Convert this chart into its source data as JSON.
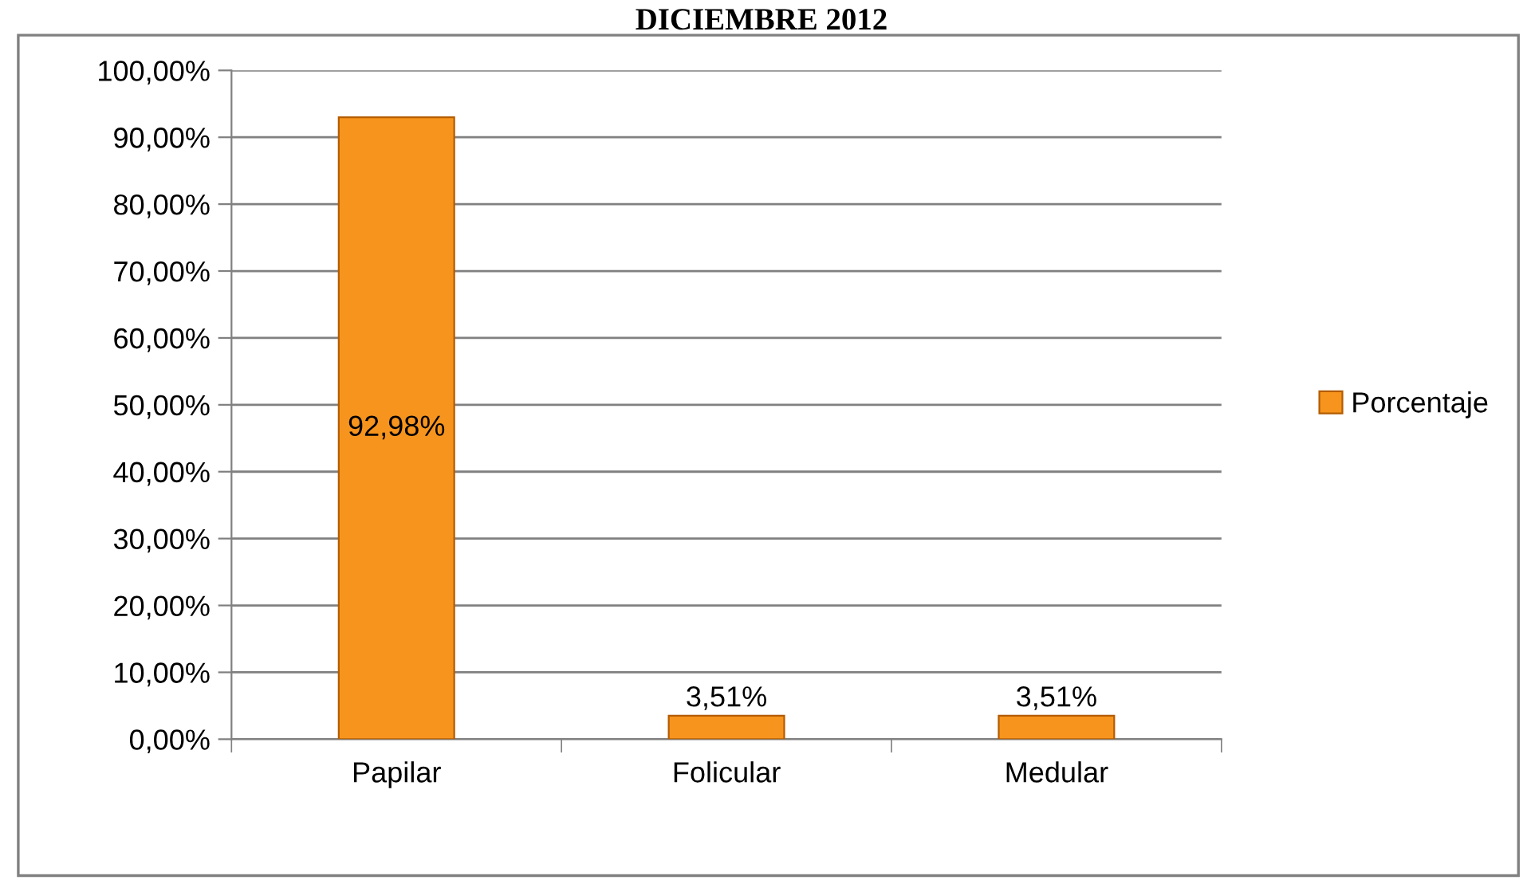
{
  "chart_data": {
    "type": "bar",
    "title": "DICIEMBRE 2012",
    "categories": [
      "Papilar",
      "Folicular",
      "Medular"
    ],
    "series": [
      {
        "name": "Porcentaje",
        "color": "#f7941d",
        "values": [
          92.98,
          3.51,
          3.51
        ],
        "value_labels": [
          "92,98%",
          "3,51%",
          "3,51%"
        ]
      }
    ],
    "ylim": [
      0,
      100
    ],
    "yticks": [
      {
        "value": 0,
        "label": "0,00%"
      },
      {
        "value": 10,
        "label": "10,00%"
      },
      {
        "value": 20,
        "label": "20,00%"
      },
      {
        "value": 30,
        "label": "30,00%"
      },
      {
        "value": 40,
        "label": "40,00%"
      },
      {
        "value": 50,
        "label": "50,00%"
      },
      {
        "value": 60,
        "label": "60,00%"
      },
      {
        "value": 70,
        "label": "70,00%"
      },
      {
        "value": 80,
        "label": "80,00%"
      },
      {
        "value": 90,
        "label": "90,00%"
      },
      {
        "value": 100,
        "label": "100,00%"
      }
    ],
    "grid": "y",
    "legend": "right"
  }
}
